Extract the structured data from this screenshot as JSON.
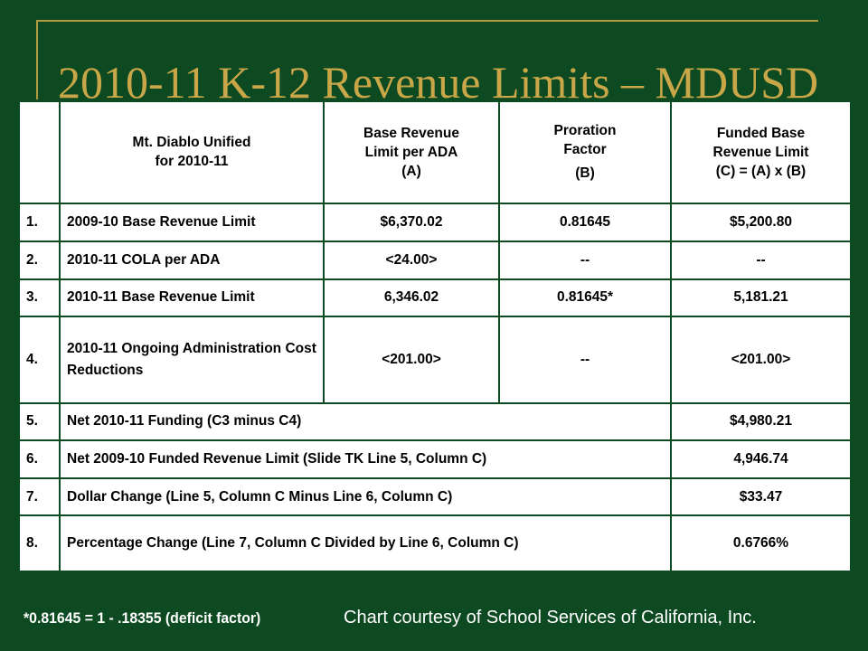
{
  "title": "2010-11 K-12 Revenue Limits – MDUSD",
  "table": {
    "headers": {
      "col1": [
        "Mt. Diablo Unified",
        "for 2010-11"
      ],
      "col2": [
        "Base Revenue",
        "Limit per ADA",
        "(A)"
      ],
      "col3": [
        "Proration",
        "Factor",
        "(B)"
      ],
      "col4": [
        "Funded Base",
        "Revenue Limit",
        "(C) = (A) x (B)"
      ]
    },
    "rows": [
      {
        "num": "1.",
        "label": "2009-10 Base Revenue Limit",
        "a": "$6,370.02",
        "b": "0.81645",
        "c": "$5,200.80"
      },
      {
        "num": "2.",
        "label": "2010-11 COLA per ADA",
        "a": "<24.00>",
        "b": "--",
        "c": "--"
      },
      {
        "num": "3.",
        "label": "2010-11 Base Revenue Limit",
        "a": "6,346.02",
        "b": "0.81645*",
        "c": "5,181.21"
      },
      {
        "num": "4.",
        "label": "2010-11 Ongoing Administration Cost Reductions",
        "a": "<201.00>",
        "b": "--",
        "c": "<201.00>"
      },
      {
        "num": "5.",
        "label": "Net 2010-11 Funding (C3 minus C4)",
        "c": "$4,980.21"
      },
      {
        "num": "6.",
        "label": "Net 2009-10 Funded Revenue Limit (Slide TK Line 5, Column C)",
        "c": "4,946.74"
      },
      {
        "num": "7.",
        "label": "Dollar Change (Line 5, Column C Minus Line 6, Column C)",
        "c": "$33.47"
      },
      {
        "num": "8.",
        "label": "Percentage Change (Line 7, Column C Divided by Line 6, Column C)",
        "c": "0.6766%"
      }
    ]
  },
  "footer": {
    "note": "*0.81645 = 1 - .18355 (deficit factor)",
    "credit": "Chart courtesy of School Services of California, Inc."
  },
  "colors": {
    "background": "#0d4a22",
    "title": "#c9a648",
    "frame": "#b59a42"
  }
}
